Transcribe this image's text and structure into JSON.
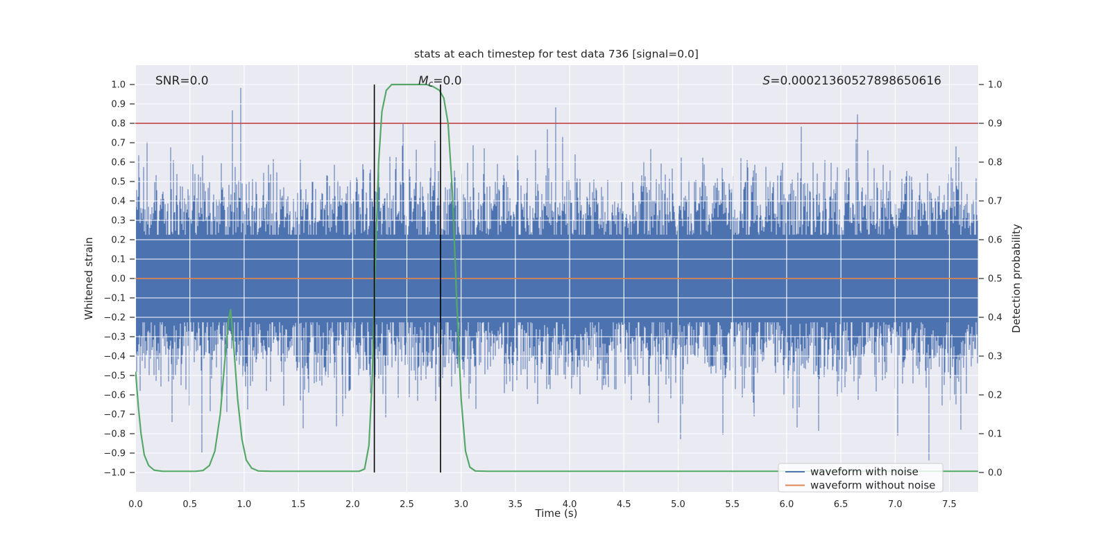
{
  "figure": {
    "background": "#ffffff",
    "axes_background": "#eaeaf2",
    "grid_color": "#ffffff",
    "text_color": "#262626"
  },
  "chart_data": {
    "type": "line",
    "title": "stats at each timestep for test data 736 [signal=0.0]",
    "xlabel": "Time (s)",
    "ylabel_left": "Whitened strain",
    "ylabel_right": "Detection probability",
    "xlim": [
      0,
      7.766
    ],
    "ylim_left": [
      -1.1,
      1.1
    ],
    "ylim_right": [
      -0.05,
      1.05
    ],
    "grid": true,
    "xticks": {
      "values": [
        0,
        0.5,
        1,
        1.5,
        2,
        2.5,
        3,
        3.5,
        4,
        4.5,
        5,
        5.5,
        6,
        6.5,
        7,
        7.5
      ],
      "labels": [
        "0.0",
        "0.5",
        "1.0",
        "1.5",
        "2.0",
        "2.5",
        "3.0",
        "3.5",
        "4.0",
        "4.5",
        "5.0",
        "5.5",
        "6.0",
        "6.5",
        "7.0",
        "7.5"
      ]
    },
    "yticks_left": {
      "values": [
        1,
        0.9,
        0.8,
        0.7,
        0.6,
        0.5,
        0.4,
        0.3,
        0.2,
        0.1,
        0,
        -0.1,
        -0.2,
        -0.3,
        -0.4,
        -0.5,
        -0.6,
        -0.7,
        -0.8,
        -0.9,
        -1
      ],
      "labels": [
        "1.0",
        "0.9",
        "0.8",
        "0.7",
        "0.6",
        "0.5",
        "0.4",
        "0.3",
        "0.2",
        "0.1",
        "0.0",
        "−0.1",
        "−0.2",
        "−0.3",
        "−0.4",
        "−0.5",
        "−0.6",
        "−0.7",
        "−0.8",
        "−0.9",
        "−1.0"
      ]
    },
    "yticks_right": {
      "values": [
        1,
        0.9,
        0.8,
        0.7,
        0.6,
        0.5,
        0.4,
        0.3,
        0.2,
        0.1,
        0
      ],
      "labels": [
        "1.0",
        "0.9",
        "0.8",
        "0.7",
        "0.6",
        "0.5",
        "0.4",
        "0.3",
        "0.2",
        "0.1",
        "0.0"
      ]
    },
    "annotations": {
      "snr": "SNR=0.0",
      "mc_main": "M",
      "mc_sub": "c",
      "mc_rest": "=0.0",
      "s_main": "S",
      "s_rest": "=0.00021360527898650616"
    },
    "series": [
      {
        "name": "waveform with noise",
        "color": "#4c72b0",
        "axis": "left",
        "kind": "noise_envelope",
        "sigma": 0.215,
        "samples_per_column": 13,
        "spike_probability": 0.009,
        "seed": 736,
        "clip": [
          -0.985,
          1.0
        ]
      },
      {
        "name": "waveform without noise",
        "color": "#dd8452",
        "axis": "left",
        "kind": "constant",
        "value": 0.0
      },
      {
        "name": "detection probability",
        "color": "#55a868",
        "axis": "right",
        "kind": "keypoints",
        "points": [
          [
            0,
            0.26
          ],
          [
            0.025,
            0.17
          ],
          [
            0.05,
            0.1
          ],
          [
            0.08,
            0.045
          ],
          [
            0.12,
            0.018
          ],
          [
            0.17,
            0.006
          ],
          [
            0.25,
            0.003
          ],
          [
            0.55,
            0.003
          ],
          [
            0.62,
            0.005
          ],
          [
            0.68,
            0.018
          ],
          [
            0.73,
            0.055
          ],
          [
            0.78,
            0.15
          ],
          [
            0.82,
            0.28
          ],
          [
            0.855,
            0.39
          ],
          [
            0.875,
            0.42
          ],
          [
            0.9,
            0.34
          ],
          [
            0.94,
            0.19
          ],
          [
            0.98,
            0.085
          ],
          [
            1.02,
            0.032
          ],
          [
            1.07,
            0.011
          ],
          [
            1.13,
            0.004
          ],
          [
            1.25,
            0.003
          ],
          [
            2.06,
            0.003
          ],
          [
            2.11,
            0.009
          ],
          [
            2.15,
            0.07
          ],
          [
            2.18,
            0.24
          ],
          [
            2.21,
            0.55
          ],
          [
            2.24,
            0.8
          ],
          [
            2.27,
            0.93
          ],
          [
            2.31,
            0.985
          ],
          [
            2.36,
            1.0
          ],
          [
            2.68,
            1.0
          ],
          [
            2.74,
            0.995
          ],
          [
            2.8,
            0.985
          ],
          [
            2.84,
            0.965
          ],
          [
            2.88,
            0.9
          ],
          [
            2.92,
            0.72
          ],
          [
            2.96,
            0.44
          ],
          [
            3.0,
            0.19
          ],
          [
            3.04,
            0.055
          ],
          [
            3.08,
            0.014
          ],
          [
            3.13,
            0.004
          ],
          [
            3.25,
            0.003
          ],
          [
            7.766,
            0.003
          ]
        ]
      }
    ],
    "threshold_line": {
      "color": "#c44e52",
      "y_right": 0.9
    },
    "vlines": {
      "color": "#000000",
      "times": [
        2.2,
        2.81
      ],
      "span_left": [
        -1.0,
        1.0
      ]
    },
    "legend": {
      "entries": [
        {
          "label": "waveform with noise",
          "color": "#4c72b0"
        },
        {
          "label": "waveform without noise",
          "color": "#dd8452"
        }
      ]
    }
  }
}
